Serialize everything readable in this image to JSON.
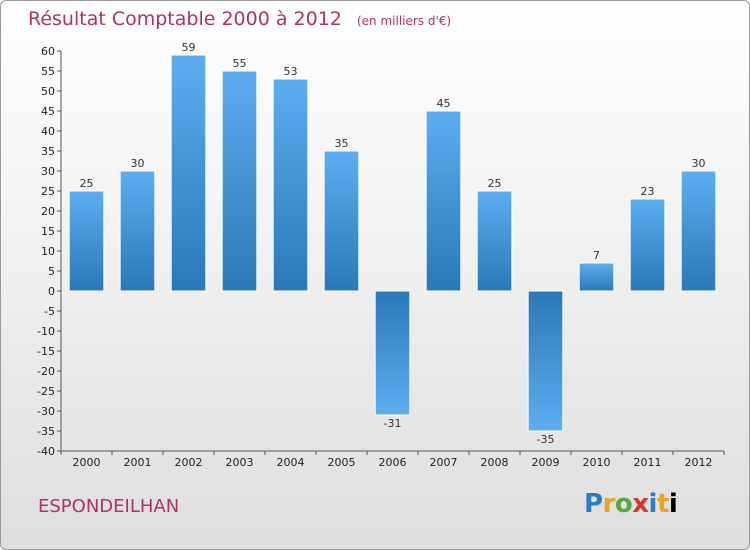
{
  "title": "Résultat Comptable 2000 à 2012",
  "unit": "(en milliers d'€)",
  "commune": "ESPONDEILHAN",
  "logo": [
    "P",
    "r",
    "o",
    "x",
    "i",
    "t",
    "i"
  ],
  "colors": {
    "bar_light": "#5aaef0",
    "bar_dark": "#2a79b9",
    "title": "#b0306a"
  },
  "chart_data": {
    "type": "bar",
    "categories": [
      "2000",
      "2001",
      "2002",
      "2003",
      "2004",
      "2005",
      "2006",
      "2007",
      "2008",
      "2009",
      "2010",
      "2011",
      "2012"
    ],
    "values": [
      25,
      30,
      59,
      55,
      53,
      35,
      -31,
      45,
      25,
      -35,
      7,
      23,
      30
    ],
    "yticks": [
      60,
      55,
      50,
      45,
      40,
      35,
      30,
      25,
      20,
      15,
      10,
      5,
      0,
      -5,
      -10,
      -15,
      -20,
      -25,
      -30,
      -35,
      -40
    ],
    "ylim": [
      -40,
      60
    ],
    "grid": false
  }
}
